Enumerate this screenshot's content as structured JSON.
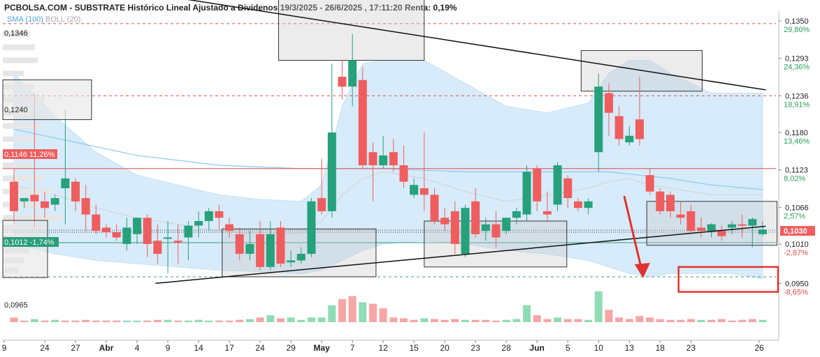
{
  "header": {
    "title": "PCBOLSA.COM - SUBSTRATE Histórico Lineal Ajustado a Dividenos 19/3/2025 - 26/6/2025 , 17:11:20 Renta: 0,19%",
    "indicator_sma": "SMA (100)",
    "indicator_boll": "BOLL (20)"
  },
  "colors": {
    "up": "#26a17b",
    "down": "#f05d5e",
    "up_volume": "#8fdcb6",
    "down_volume": "#f7a5a5",
    "bollinger_fill": "#d7ebfa",
    "sma_line": "#90c8ee",
    "boll_mid": "#d0d0d0",
    "trendline": "#111111",
    "annotation_red": "#e0332f"
  },
  "chart_data": {
    "type": "candlestick",
    "title": "SUBSTRATE",
    "y_axis": {
      "min": 0.0893,
      "max": 0.1365,
      "ticks": [
        {
          "price": "0,1350",
          "pct": "29,80%",
          "pct_color": "green"
        },
        {
          "price": "0,1293",
          "pct": "24,36%",
          "pct_color": "green"
        },
        {
          "price": "0,1236",
          "pct": "18,91%",
          "pct_color": "green"
        },
        {
          "price": "0,1180",
          "pct": "13,46%",
          "pct_color": "green"
        },
        {
          "price": "0,1123",
          "pct": "8,02%",
          "pct_color": "green"
        },
        {
          "price": "0,1066",
          "pct": "2,57%",
          "pct_color": "green"
        },
        {
          "price": "0,1010",
          "pct": "-2,87%",
          "pct_color": "red"
        },
        {
          "price": "0,0950",
          "pct": "-8,65%",
          "pct_color": "red"
        }
      ],
      "last_price_label": "0,1030"
    },
    "x_ticks": [
      {
        "label": "9",
        "bold": false
      },
      {
        "label": "24",
        "bold": false
      },
      {
        "label": "27",
        "bold": false
      },
      {
        "label": "Abr",
        "bold": true
      },
      {
        "label": "4",
        "bold": false
      },
      {
        "label": "9",
        "bold": false
      },
      {
        "label": "14",
        "bold": false
      },
      {
        "label": "17",
        "bold": false
      },
      {
        "label": "24",
        "bold": false
      },
      {
        "label": "29",
        "bold": false
      },
      {
        "label": "May",
        "bold": true
      },
      {
        "label": "7",
        "bold": false
      },
      {
        "label": "12",
        "bold": false
      },
      {
        "label": "15",
        "bold": false
      },
      {
        "label": "20",
        "bold": false
      },
      {
        "label": "23",
        "bold": false
      },
      {
        "label": "28",
        "bold": false
      },
      {
        "label": "Jun",
        "bold": true
      },
      {
        "label": "5",
        "bold": false
      },
      {
        "label": "10",
        "bold": false
      },
      {
        "label": "13",
        "bold": false
      },
      {
        "label": "18",
        "bold": false
      },
      {
        "label": "23",
        "bold": false
      },
      {
        "label": "26",
        "bold": false
      }
    ],
    "left_labels": [
      {
        "text": "0,1346"
      },
      {
        "text": "0,1240"
      },
      {
        "text": "0,1146  11,26%"
      },
      {
        "text": "0,1012  -1,74%"
      },
      {
        "text": "0,0965"
      }
    ],
    "candles": [
      [
        0.1105,
        0.1125,
        0.106,
        0.104
      ],
      [
        0.1075,
        0.1075,
        0.108,
        0.1065
      ],
      [
        0.1085,
        0.124,
        0.1075,
        0.1035
      ],
      [
        0.1075,
        0.109,
        0.1065,
        0.105
      ],
      [
        0.107,
        0.1085,
        0.108,
        0.106
      ],
      [
        0.1095,
        0.1215,
        0.111,
        0.104
      ],
      [
        0.1105,
        0.111,
        0.1075,
        0.106
      ],
      [
        0.108,
        0.11,
        0.1055,
        0.103
      ],
      [
        0.1055,
        0.107,
        0.103,
        0.1025
      ],
      [
        0.1035,
        0.104,
        0.1028,
        0.102
      ],
      [
        0.1028,
        0.104,
        0.102,
        0.1015
      ],
      [
        0.101,
        0.105,
        0.1035,
        0.1
      ],
      [
        0.1025,
        0.105,
        0.105,
        0.101
      ],
      [
        0.105,
        0.1055,
        0.101,
        0.099
      ],
      [
        0.1015,
        0.104,
        0.0995,
        0.098
      ],
      [
        0.102,
        0.1045,
        0.102,
        0.0965
      ],
      [
        0.1015,
        0.104,
        0.1012,
        0.098
      ],
      [
        0.102,
        0.1045,
        0.1038,
        0.0985
      ],
      [
        0.1038,
        0.106,
        0.1045,
        0.102
      ],
      [
        0.1045,
        0.1065,
        0.106,
        0.103
      ],
      [
        0.106,
        0.107,
        0.105,
        0.103
      ],
      [
        0.104,
        0.105,
        0.103,
        0.102
      ],
      [
        0.1025,
        0.1035,
        0.0995,
        0.0985
      ],
      [
        0.0995,
        0.103,
        0.101,
        0.0985
      ],
      [
        0.1025,
        0.1045,
        0.0975,
        0.097
      ],
      [
        0.0975,
        0.1045,
        0.1025,
        0.097
      ],
      [
        0.1035,
        0.1045,
        0.098,
        0.0975
      ],
      [
        0.0982,
        0.1,
        0.0985,
        0.0975
      ],
      [
        0.0985,
        0.1005,
        0.0995,
        0.098
      ],
      [
        0.0995,
        0.108,
        0.1075,
        0.099
      ],
      [
        0.108,
        0.114,
        0.106,
        0.1055
      ],
      [
        0.106,
        0.1285,
        0.118,
        0.105
      ],
      [
        0.1265,
        0.129,
        0.125,
        0.123
      ],
      [
        0.125,
        0.133,
        0.129,
        0.122
      ],
      [
        0.126,
        0.128,
        0.113,
        0.1125
      ],
      [
        0.115,
        0.1165,
        0.113,
        0.1075
      ],
      [
        0.113,
        0.1175,
        0.1145,
        0.1125
      ],
      [
        0.115,
        0.117,
        0.113,
        0.112
      ],
      [
        0.113,
        0.116,
        0.1105,
        0.1095
      ],
      [
        0.1085,
        0.111,
        0.11,
        0.108
      ],
      [
        0.1095,
        0.118,
        0.1085,
        0.106
      ],
      [
        0.1085,
        0.1095,
        0.1045,
        0.104
      ],
      [
        0.105,
        0.1065,
        0.104,
        0.103
      ],
      [
        0.106,
        0.1075,
        0.101,
        0.0995
      ],
      [
        0.0995,
        0.107,
        0.1065,
        0.099
      ],
      [
        0.1075,
        0.1095,
        0.1025,
        0.102
      ],
      [
        0.103,
        0.105,
        0.104,
        0.1015
      ],
      [
        0.104,
        0.106,
        0.102,
        0.1005
      ],
      [
        0.103,
        0.105,
        0.105,
        0.1025
      ],
      [
        0.105,
        0.1065,
        0.106,
        0.104
      ],
      [
        0.1055,
        0.113,
        0.112,
        0.1045
      ],
      [
        0.1125,
        0.113,
        0.1075,
        0.106
      ],
      [
        0.106,
        0.109,
        0.1055,
        0.1045
      ],
      [
        0.107,
        0.1135,
        0.113,
        0.106
      ],
      [
        0.111,
        0.1115,
        0.108,
        0.1065
      ],
      [
        0.1075,
        0.108,
        0.1065,
        0.106
      ],
      [
        0.1065,
        0.108,
        0.1075,
        0.1055
      ],
      [
        0.115,
        0.127,
        0.125,
        0.112
      ],
      [
        0.124,
        0.1255,
        0.121,
        0.1175
      ],
      [
        0.1205,
        0.122,
        0.117,
        0.116
      ],
      [
        0.1165,
        0.119,
        0.1175,
        0.116
      ],
      [
        0.12,
        0.1265,
        0.117,
        0.116
      ],
      [
        0.1115,
        0.1125,
        0.109,
        0.1085
      ],
      [
        0.109,
        0.1095,
        0.106,
        0.1055
      ],
      [
        0.1085,
        0.109,
        0.106,
        0.105
      ],
      [
        0.1055,
        0.1075,
        0.105,
        0.104
      ],
      [
        0.106,
        0.107,
        0.103,
        0.1025
      ],
      [
        0.1035,
        0.105,
        0.103,
        0.102
      ],
      [
        0.103,
        0.1042,
        0.104,
        0.102
      ],
      [
        0.103,
        0.1038,
        0.1022,
        0.1015
      ],
      [
        0.1035,
        0.1045,
        0.104,
        0.1025
      ],
      [
        0.104,
        0.1055,
        0.1038,
        0.102
      ],
      [
        0.1038,
        0.105,
        0.1048,
        0.1005
      ],
      [
        0.1025,
        0.1045,
        0.1032,
        0.1022
      ]
    ],
    "volume": [
      [
        6,
        "down"
      ],
      [
        2,
        "down"
      ],
      [
        4,
        "up"
      ],
      [
        2,
        "down"
      ],
      [
        3,
        "up"
      ],
      [
        2,
        "down"
      ],
      [
        2,
        "down"
      ],
      [
        3,
        "down"
      ],
      [
        2,
        "down"
      ],
      [
        2,
        "down"
      ],
      [
        2,
        "down"
      ],
      [
        2,
        "up"
      ],
      [
        2,
        "up"
      ],
      [
        2,
        "down"
      ],
      [
        3,
        "down"
      ],
      [
        3,
        "up"
      ],
      [
        2,
        "down"
      ],
      [
        2,
        "up"
      ],
      [
        3,
        "up"
      ],
      [
        2,
        "up"
      ],
      [
        2,
        "down"
      ],
      [
        2,
        "down"
      ],
      [
        3,
        "down"
      ],
      [
        4,
        "up"
      ],
      [
        6,
        "down"
      ],
      [
        9,
        "up"
      ],
      [
        5,
        "down"
      ],
      [
        6,
        "up"
      ],
      [
        3,
        "up"
      ],
      [
        6,
        "up"
      ],
      [
        6,
        "up"
      ],
      [
        22,
        "up"
      ],
      [
        30,
        "down"
      ],
      [
        34,
        "down"
      ],
      [
        26,
        "up"
      ],
      [
        24,
        "down"
      ],
      [
        18,
        "down"
      ],
      [
        6,
        "down"
      ],
      [
        5,
        "down"
      ],
      [
        3,
        "down"
      ],
      [
        5,
        "up"
      ],
      [
        4,
        "down"
      ],
      [
        3,
        "down"
      ],
      [
        4,
        "down"
      ],
      [
        3,
        "up"
      ],
      [
        3,
        "down"
      ],
      [
        3,
        "down"
      ],
      [
        2,
        "down"
      ],
      [
        3,
        "up"
      ],
      [
        4,
        "up"
      ],
      [
        22,
        "up"
      ],
      [
        9,
        "down"
      ],
      [
        4,
        "down"
      ],
      [
        6,
        "up"
      ],
      [
        4,
        "down"
      ],
      [
        4,
        "down"
      ],
      [
        3,
        "up"
      ],
      [
        40,
        "up"
      ],
      [
        16,
        "down"
      ],
      [
        6,
        "down"
      ],
      [
        4,
        "down"
      ],
      [
        8,
        "down"
      ],
      [
        6,
        "down"
      ],
      [
        4,
        "down"
      ],
      [
        3,
        "down"
      ],
      [
        3,
        "down"
      ],
      [
        4,
        "down"
      ],
      [
        3,
        "up"
      ],
      [
        3,
        "down"
      ],
      [
        4,
        "down"
      ],
      [
        2,
        "down"
      ],
      [
        3,
        "down"
      ],
      [
        4,
        "down"
      ],
      [
        3,
        "up"
      ]
    ],
    "bollinger": {
      "x_idx": [
        0,
        4,
        8,
        12,
        16,
        20,
        24,
        28,
        30,
        32,
        34,
        36,
        40,
        44,
        48,
        52,
        56,
        58,
        60,
        62,
        64,
        66,
        68,
        70,
        73
      ],
      "upper": [
        0.127,
        0.1205,
        0.115,
        0.1115,
        0.11,
        0.1085,
        0.1078,
        0.1075,
        0.11,
        0.122,
        0.1285,
        0.129,
        0.129,
        0.1255,
        0.122,
        0.121,
        0.1225,
        0.127,
        0.129,
        0.129,
        0.127,
        0.1255,
        0.124,
        0.124,
        0.124
      ],
      "lower": [
        0.101,
        0.0995,
        0.0985,
        0.098,
        0.0975,
        0.097,
        0.0968,
        0.0965,
        0.097,
        0.0985,
        0.1,
        0.101,
        0.1015,
        0.101,
        0.1,
        0.0995,
        0.0985,
        0.0975,
        0.0965,
        0.096,
        0.0965,
        0.0965,
        0.0965,
        0.0965,
        0.0957
      ],
      "mid": [
        0.11,
        0.1085,
        0.1065,
        0.105,
        0.104,
        0.103,
        0.1025,
        0.1025,
        0.1045,
        0.1085,
        0.111,
        0.112,
        0.111,
        0.109,
        0.1075,
        0.1085,
        0.1095,
        0.1105,
        0.111,
        0.11,
        0.1095,
        0.109,
        0.1085,
        0.1085,
        0.1085
      ]
    },
    "sma": {
      "x_idx": [
        0,
        6,
        12,
        20,
        28,
        36,
        44,
        52,
        58,
        64,
        68,
        73
      ],
      "values": [
        0.1185,
        0.1165,
        0.1145,
        0.113,
        0.1125,
        0.1125,
        0.112,
        0.112,
        0.112,
        0.111,
        0.11,
        0.1093
      ]
    },
    "horizontal_lines": [
      {
        "price": 0.1346,
        "style": "dashed",
        "color": "red"
      },
      {
        "price": 0.1236,
        "style": "dashed",
        "color": "red"
      },
      {
        "price": 0.1125,
        "style": "solid",
        "color": "red"
      },
      {
        "price": 0.1031,
        "style": "dotted",
        "color": "dark"
      },
      {
        "price": 0.1028,
        "style": "dotted",
        "color": "dark"
      },
      {
        "price": 0.1012,
        "style": "solid",
        "color": "teal"
      },
      {
        "price": 0.096,
        "style": "dashed",
        "color": "green"
      }
    ],
    "trendlines": [
      {
        "from": [
          16.0,
          0.1385
        ],
        "to": [
          73.3,
          0.1245
        ]
      },
      {
        "from": [
          13.8,
          0.095
        ],
        "to": [
          73.3,
          0.1037
        ]
      }
    ],
    "grey_boxes": [
      {
        "x1": 25.8,
        "x2": 40.0,
        "top": 0.1385,
        "bottom": 0.129
      },
      {
        "x1": 55.3,
        "x2": 67.1,
        "top": 0.1305,
        "bottom": 0.1243
      },
      {
        "x1": 61.7,
        "x2": 74.4,
        "top": 0.1075,
        "bottom": 0.1008
      },
      {
        "x1": 20.3,
        "x2": 35.3,
        "top": 0.1033,
        "bottom": 0.096
      },
      {
        "x1": 40.0,
        "x2": 53.9,
        "top": 0.1045,
        "bottom": 0.0975
      }
    ],
    "highlight_box": {
      "x1": 64.8,
      "x2": 74.5,
      "top": 0.0975,
      "bottom": 0.0937
    },
    "arrow": {
      "from": [
        59.5,
        0.1083
      ],
      "to": [
        61.2,
        0.096
      ]
    }
  }
}
